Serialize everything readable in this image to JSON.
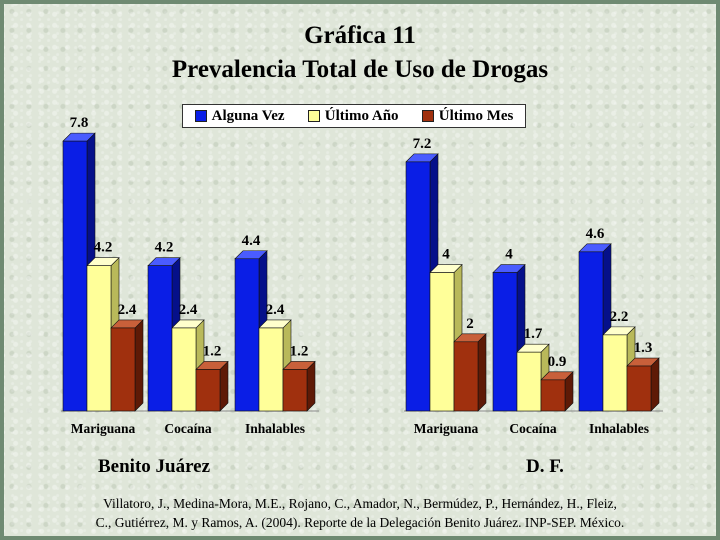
{
  "title_line1": "Gráfica 11",
  "title_line2": "Prevalencia Total de Uso de Drogas",
  "legend": [
    {
      "label": "Alguna Vez",
      "color": "#0a1ee6"
    },
    {
      "label": "Último Año",
      "color": "#ffff99"
    },
    {
      "label": "Último Mes",
      "color": "#a0300e"
    }
  ],
  "citation_line1": "Villatoro, J., Medina-Mora, M.E., Rojano, C., Amador, N., Bermúdez, P., Hernández, H., Fleiz,",
  "citation_line2": "C., Gutiérrez, M. y Ramos, A. (2004). Reporte de la Delegación Benito Juárez. INP-SEP. México.",
  "chart_data": [
    {
      "type": "bar",
      "panel_label": "Benito Juárez",
      "categories": [
        "Mariguana",
        "Cocaína",
        "Inhalables"
      ],
      "series": [
        {
          "name": "Alguna Vez",
          "values": [
            7.8,
            4.2,
            4.4
          ]
        },
        {
          "name": "Último Año",
          "values": [
            4.2,
            2.4,
            2.4
          ]
        },
        {
          "name": "Último Mes",
          "values": [
            2.4,
            1.2,
            1.2
          ]
        }
      ],
      "value_labels": [
        [
          "7.8",
          "4.2",
          "2.4"
        ],
        [
          "4.2",
          "2.4",
          "1.2"
        ],
        [
          "4.4",
          "2.4",
          "1.2"
        ]
      ],
      "ylim": [
        0,
        8
      ],
      "grid": false,
      "legend": "top"
    },
    {
      "type": "bar",
      "panel_label": "D. F.",
      "categories": [
        "Mariguana",
        "Cocaína",
        "Inhalables"
      ],
      "series": [
        {
          "name": "Alguna Vez",
          "values": [
            7.2,
            4,
            4.6
          ]
        },
        {
          "name": "Último Año",
          "values": [
            4,
            1.7,
            2.2
          ]
        },
        {
          "name": "Último Mes",
          "values": [
            2,
            0.9,
            1.3
          ]
        }
      ],
      "value_labels": [
        [
          "7.2",
          "4",
          "2"
        ],
        [
          "4",
          "1.7",
          "0.9"
        ],
        [
          "4.6",
          "2.2",
          "1.3"
        ]
      ],
      "ylim": [
        0,
        8
      ],
      "grid": false,
      "legend": "top"
    }
  ]
}
